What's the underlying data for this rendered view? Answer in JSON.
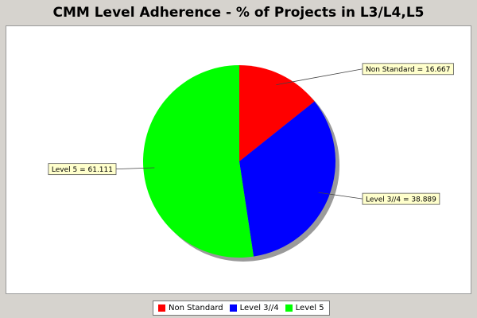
{
  "chart_data": {
    "type": "pie",
    "title": "CMM Level Adherence - % of Projects in L3/L4,L5",
    "slices": [
      {
        "label": "Non Standard",
        "value": 16.667,
        "color": "#ff0000",
        "data_label": "Non Standard = 16.667"
      },
      {
        "label": "Level 3//4",
        "value": 38.889,
        "color": "#0000ff",
        "data_label": "Level 3//4 = 38.889"
      },
      {
        "label": "Level 5",
        "value": 61.111,
        "color": "#00ff00",
        "data_label": "Level 5 = 61.111"
      }
    ],
    "legend_position": "bottom"
  }
}
